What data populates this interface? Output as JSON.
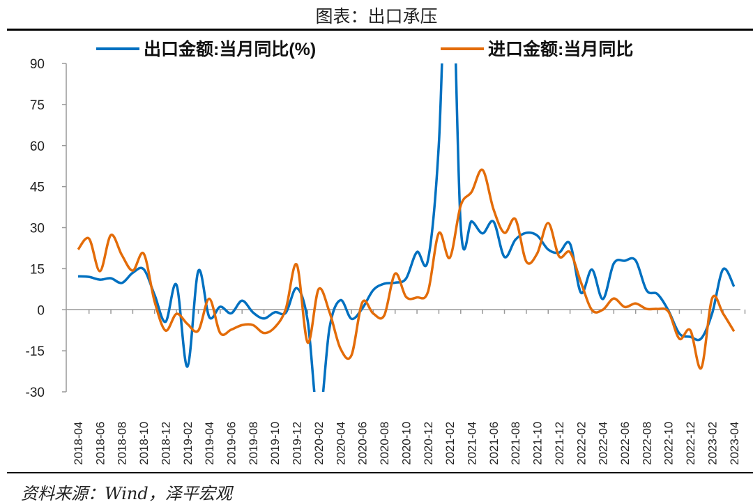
{
  "title": "图表：出口承压",
  "source": "资料来源：Wind，泽平宏观",
  "chart_data": {
    "type": "line",
    "title": "图表：出口承压",
    "xlabel": "",
    "ylabel": "",
    "ylim": [
      -30,
      90
    ],
    "yticks": [
      90,
      75,
      60,
      45,
      30,
      15,
      0,
      -15,
      -30
    ],
    "legend_position": "top",
    "x": [
      "2018-04",
      "2018-05",
      "2018-06",
      "2018-07",
      "2018-08",
      "2018-09",
      "2018-10",
      "2018-11",
      "2018-12",
      "2019-01",
      "2019-02",
      "2019-03",
      "2019-04",
      "2019-05",
      "2019-06",
      "2019-07",
      "2019-08",
      "2019-09",
      "2019-10",
      "2019-11",
      "2019-12",
      "2020-01",
      "2020-02",
      "2020-03",
      "2020-04",
      "2020-05",
      "2020-06",
      "2020-07",
      "2020-08",
      "2020-09",
      "2020-10",
      "2020-11",
      "2020-12",
      "2021-01",
      "2021-02",
      "2021-03",
      "2021-04",
      "2021-05",
      "2021-06",
      "2021-07",
      "2021-08",
      "2021-09",
      "2021-10",
      "2021-11",
      "2021-12",
      "2022-01",
      "2022-02",
      "2022-03",
      "2022-04",
      "2022-05",
      "2022-06",
      "2022-07",
      "2022-08",
      "2022-09",
      "2022-10",
      "2022-11",
      "2022-12",
      "2023-01",
      "2023-02",
      "2023-03",
      "2023-04"
    ],
    "xtick_labels": [
      "2018-04",
      "2018-06",
      "2018-08",
      "2018-10",
      "2018-12",
      "2019-02",
      "2019-04",
      "2019-06",
      "2019-08",
      "2019-10",
      "2019-12",
      "2020-02",
      "2020-04",
      "2020-06",
      "2020-08",
      "2020-10",
      "2020-12",
      "2021-02",
      "2021-04",
      "2021-06",
      "2021-08",
      "2021-10",
      "2021-12",
      "2022-02",
      "2022-04",
      "2022-06",
      "2022-08",
      "2022-10",
      "2022-12",
      "2023-02",
      "2023-04"
    ],
    "series": [
      {
        "name": "出口金额:当月同比(%)",
        "color": "#0070C0",
        "values": [
          12.2,
          12.0,
          11.0,
          11.5,
          9.8,
          13.5,
          14.8,
          5.4,
          -4.4,
          9.1,
          -20.8,
          14.2,
          -2.7,
          1.1,
          -1.3,
          3.3,
          -1.0,
          -3.2,
          -0.9,
          -1.1,
          7.9,
          -4.0,
          -40.6,
          -6.6,
          3.5,
          -3.3,
          0.5,
          7.2,
          9.5,
          9.9,
          11.4,
          21.1,
          18.1,
          60.6,
          154.9,
          30.6,
          32.3,
          27.9,
          32.2,
          19.3,
          25.6,
          28.1,
          27.1,
          22.0,
          20.9,
          24.1,
          6.2,
          14.7,
          3.9,
          16.9,
          17.9,
          18.0,
          7.1,
          5.7,
          -0.3,
          -8.7,
          -9.9,
          -10.5,
          -1.3,
          14.8,
          8.5
        ]
      },
      {
        "name": "进口金额:当月同比",
        "color": "#E36C09",
        "values": [
          22.0,
          26.0,
          14.1,
          27.3,
          20.0,
          14.3,
          20.5,
          3.0,
          -7.6,
          -1.5,
          -5.2,
          -7.6,
          4.0,
          -8.5,
          -7.3,
          -5.6,
          -5.6,
          -8.5,
          -6.4,
          0.3,
          16.5,
          -12.0,
          7.5,
          -0.9,
          -14.2,
          -16.7,
          2.7,
          -1.4,
          -2.1,
          13.2,
          4.7,
          4.5,
          6.5,
          28.0,
          19.0,
          38.1,
          43.1,
          51.1,
          36.7,
          28.1,
          33.1,
          17.6,
          20.6,
          31.7,
          19.5,
          21.0,
          10.0,
          -0.1,
          0.0,
          4.1,
          1.0,
          2.3,
          0.3,
          0.3,
          -0.7,
          -10.6,
          -7.5,
          -21.3,
          4.2,
          -1.4,
          -7.9
        ]
      }
    ]
  }
}
